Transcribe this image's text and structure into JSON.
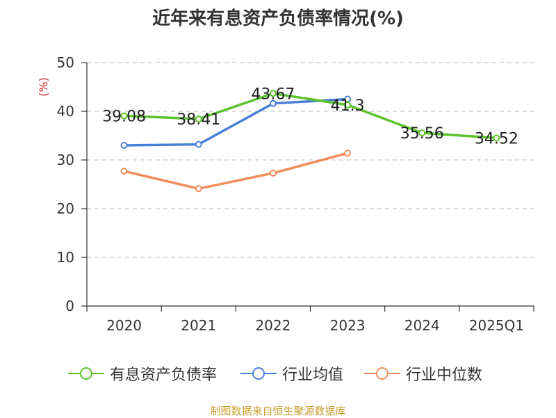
{
  "chart_data": {
    "type": "line",
    "title": "近年来有息资产负债率情况(%)",
    "ylabel": "(%)",
    "ylim": [
      0,
      50
    ],
    "yticks": [
      0,
      10,
      20,
      30,
      40,
      50
    ],
    "categories": [
      "2020",
      "2021",
      "2022",
      "2023",
      "2024",
      "2025Q1"
    ],
    "grid": true,
    "legend_position": "bottom",
    "series": [
      {
        "name": "有息资产负债率",
        "color": "#5cc42a",
        "show_labels": true,
        "values": [
          39.08,
          38.41,
          43.67,
          41.3,
          35.56,
          34.52
        ],
        "value_labels": [
          "39.08",
          "38.41",
          "43.67",
          "41.3",
          "35.56",
          "34.52"
        ]
      },
      {
        "name": "行业均值",
        "color": "#4a7fd9",
        "show_labels": false,
        "values": [
          33.0,
          33.2,
          41.6,
          42.5,
          null,
          null
        ]
      },
      {
        "name": "行业中位数",
        "color": "#f28c5a",
        "show_labels": false,
        "values": [
          27.7,
          24.1,
          27.3,
          31.4,
          null,
          null
        ]
      }
    ]
  },
  "footer": {
    "source": "制图数据来自恒生聚源数据库"
  }
}
